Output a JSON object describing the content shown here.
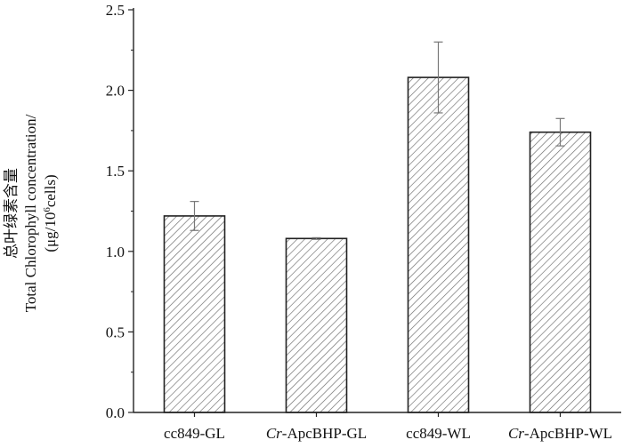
{
  "chart_data": {
    "type": "bar",
    "categories": [
      {
        "prefix": "",
        "rest": "cc849-GL"
      },
      {
        "prefix": "Cr",
        "rest": "-ApcBHP-GL"
      },
      {
        "prefix": "",
        "rest": "cc849-WL"
      },
      {
        "prefix": "Cr",
        "rest": "-ApcBHP-WL"
      }
    ],
    "values": [
      1.22,
      1.08,
      2.08,
      1.74
    ],
    "errors": [
      0.09,
      0.005,
      0.22,
      0.085
    ],
    "ylabel": {
      "line1": "总叶绿素含量",
      "line2": "Total Chlorophyll concentration/",
      "line3_a": "(μg/10",
      "line3_sup": "6",
      "line3_b": "cells)"
    },
    "ylim": [
      0,
      2.5
    ],
    "yticks": [
      "0.0",
      "0.5",
      "1.0",
      "1.5",
      "2.0",
      "2.5"
    ],
    "grid": false,
    "bar_fill": "hatched",
    "colors": {
      "bar_stroke": "#222222",
      "hatch": "#6a6a6a",
      "error": "#777777",
      "axis": "#222222"
    }
  }
}
